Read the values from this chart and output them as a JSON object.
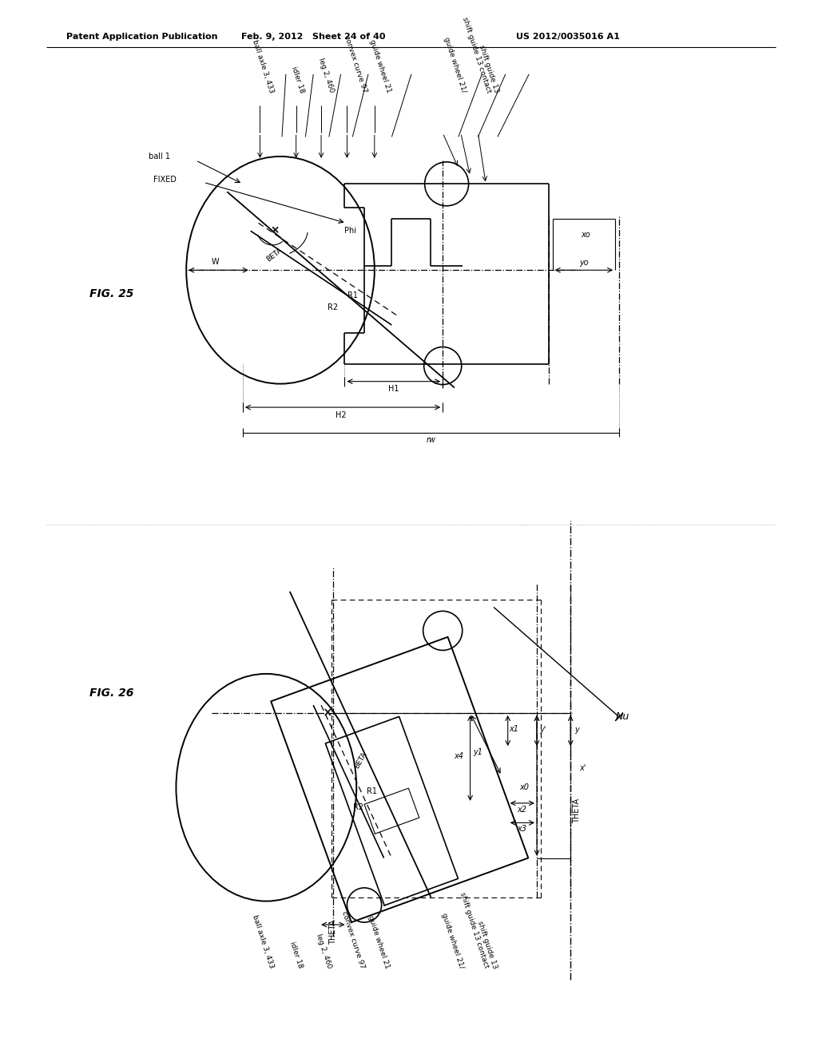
{
  "background_color": "#ffffff",
  "header_left": "Patent Application Publication",
  "header_center": "Feb. 9, 2012   Sheet 24 of 40",
  "header_right": "US 2012/0035016 A1",
  "fig25_label": "FIG. 25",
  "fig26_label": "FIG. 26",
  "line_color": "#000000",
  "line_width": 1.2,
  "dash_color": "#555555"
}
